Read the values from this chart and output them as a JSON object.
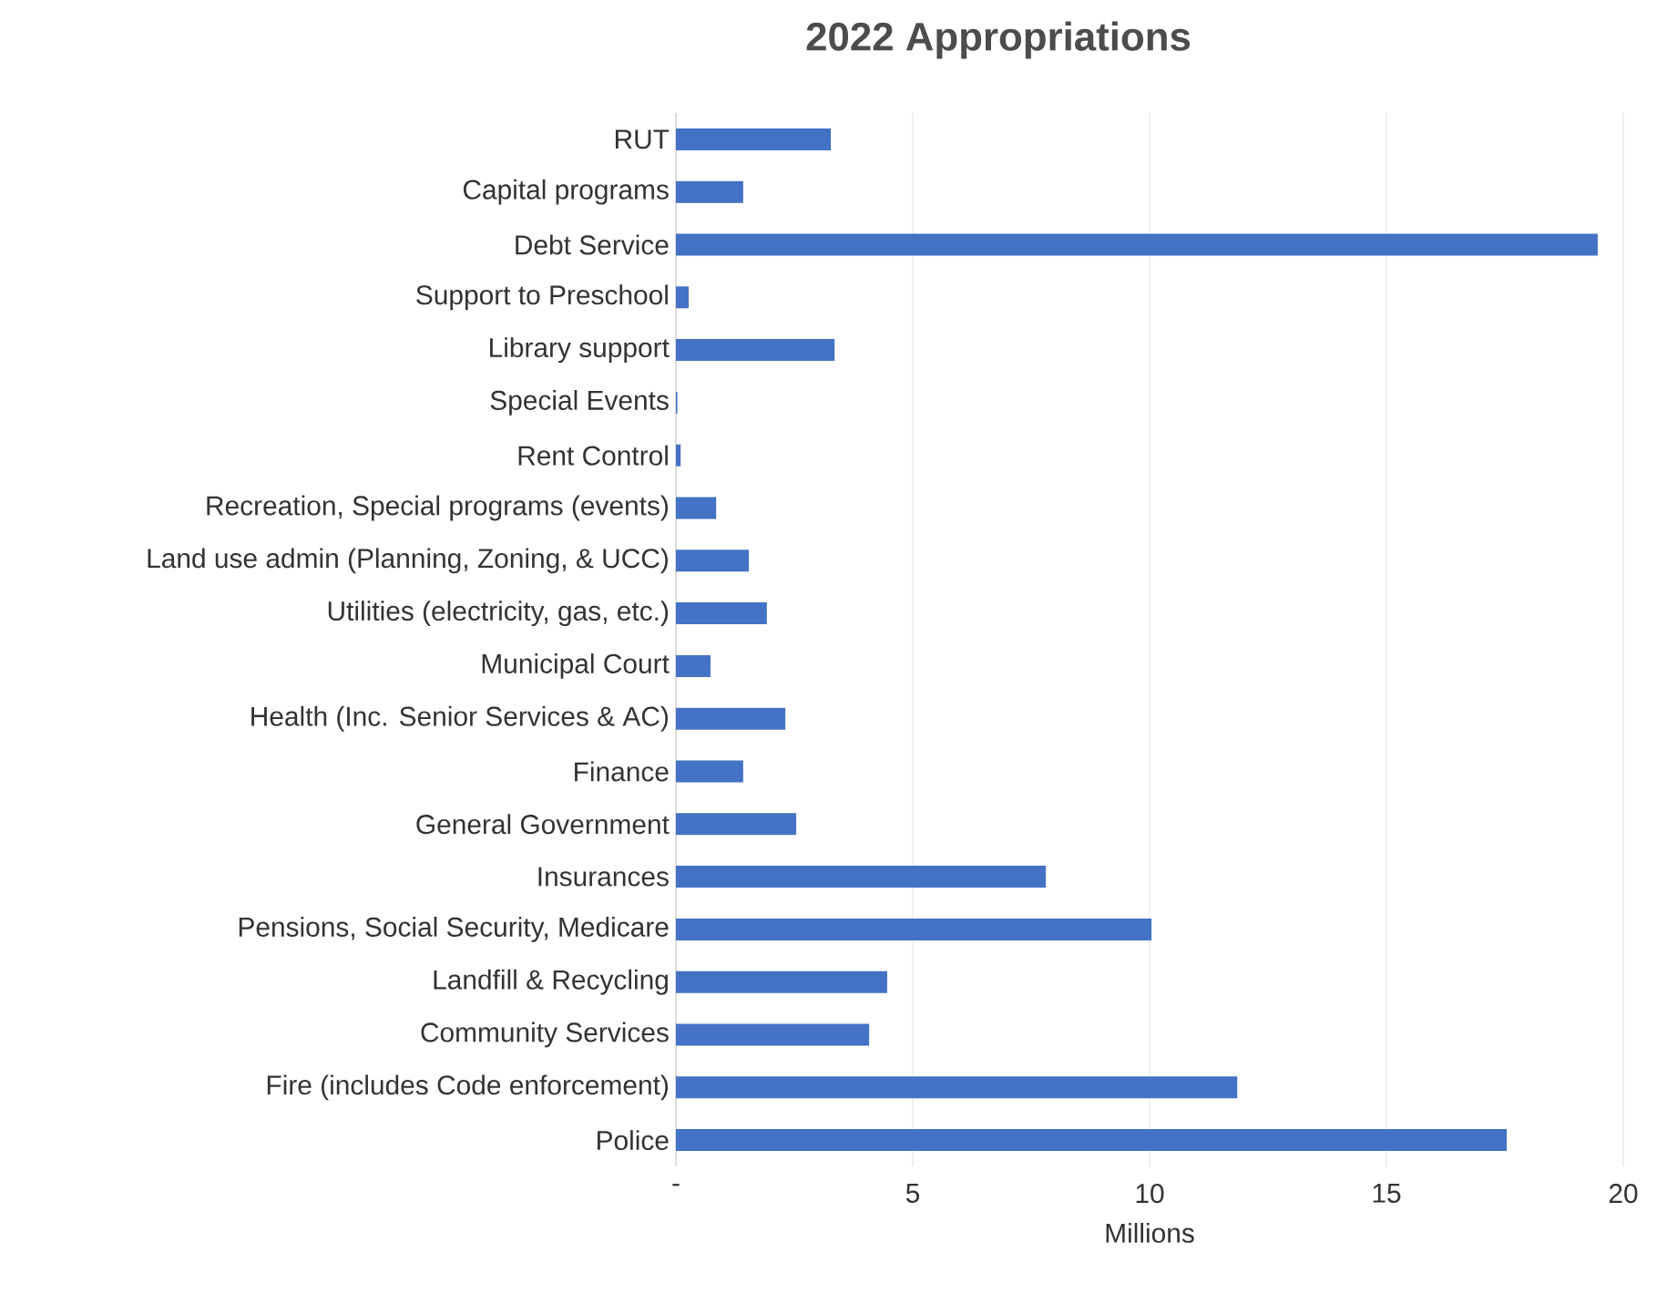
{
  "chart_data": {
    "type": "bar",
    "orientation": "horizontal",
    "title": "2022 Appropriations",
    "xlabel": "Millions",
    "categories": [
      "RUT",
      "Capital programs",
      "Debt Service",
      "Support to Preschool",
      "Library support",
      "Special Events",
      "Rent Control",
      "Recreation, Special programs (events)",
      "Land use admin (Planning, Zoning, & UCC)",
      "Utilities (electricity, gas, etc.)",
      "Municipal Court",
      "Health (Inc. Senior Services & AC)",
      "Finance",
      "General Government",
      "Insurances",
      "Pensions, Social Security, Medicare",
      "Landfill & Recycling",
      "Community Services",
      "Fire (includes Code enforcement)",
      "Police"
    ],
    "values": [
      3.27,
      1.42,
      19.46,
      0.27,
      3.35,
      0.03,
      0.1,
      0.85,
      1.54,
      1.92,
      0.73,
      2.31,
      1.42,
      2.54,
      7.81,
      10.04,
      4.46,
      4.08,
      11.85,
      17.54
    ],
    "color": "#4472c4",
    "xlim": [
      0,
      20
    ],
    "xticks": [
      {
        "value": 0,
        "label": "-"
      },
      5,
      10,
      15,
      20
    ],
    "grid": "x"
  }
}
